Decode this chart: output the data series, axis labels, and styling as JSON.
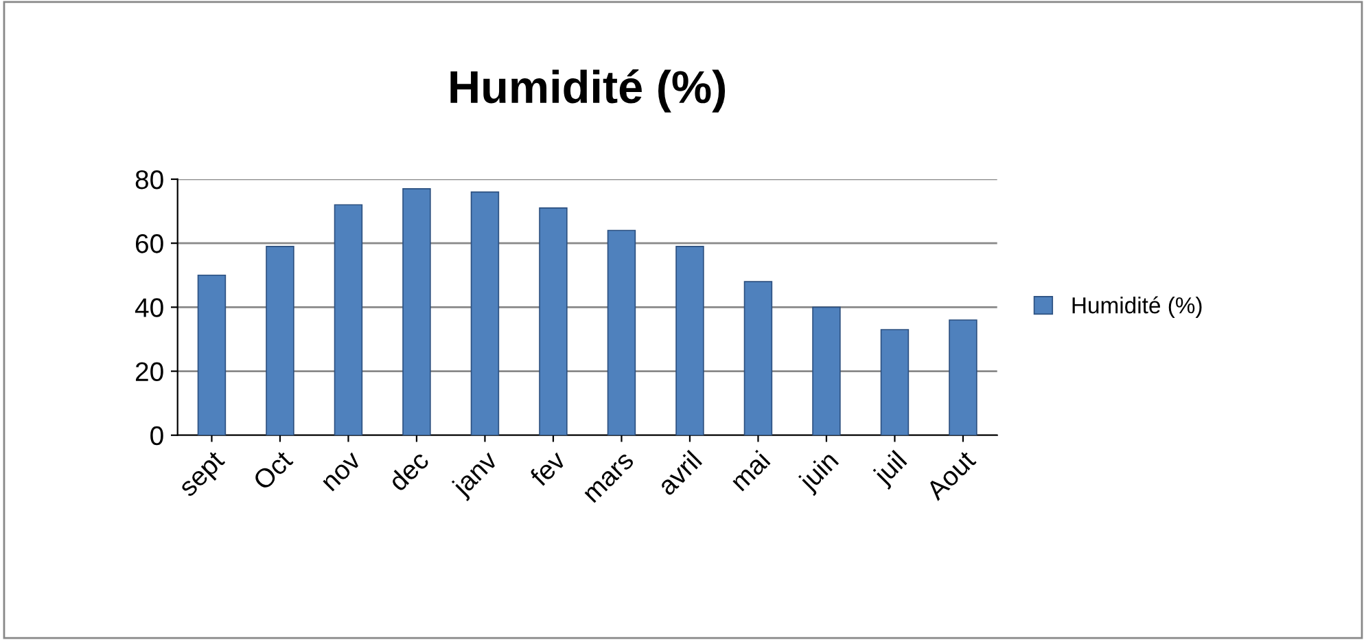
{
  "chart_data": {
    "type": "bar",
    "title": "Humidité (%)",
    "categories": [
      "sept",
      "Oct",
      "nov",
      "dec",
      "janv",
      "fev",
      "mars",
      "avril",
      "mai",
      "juin",
      "juil",
      "Aout"
    ],
    "series": [
      {
        "name": "Humidité (%)",
        "color": "#4f81bd",
        "values": [
          50,
          59,
          72,
          77,
          76,
          71,
          64,
          59,
          48,
          40,
          33,
          36
        ]
      }
    ],
    "ylim": [
      0,
      80
    ],
    "yticks": [
      0,
      20,
      40,
      60,
      80
    ],
    "grid": "y",
    "legend": "right"
  }
}
